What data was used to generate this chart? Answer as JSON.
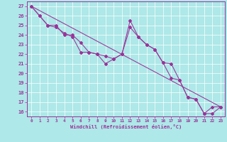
{
  "xlabel": "Windchill (Refroidissement éolien,°C)",
  "background_color": "#aee8e8",
  "line_color": "#993399",
  "xlim": [
    -0.5,
    23.5
  ],
  "ylim": [
    15.5,
    27.5
  ],
  "xticks": [
    0,
    1,
    2,
    3,
    4,
    5,
    6,
    7,
    8,
    9,
    10,
    11,
    12,
    13,
    14,
    15,
    16,
    17,
    18,
    19,
    20,
    21,
    22,
    23
  ],
  "yticks": [
    16,
    17,
    18,
    19,
    20,
    21,
    22,
    23,
    24,
    25,
    26,
    27
  ],
  "line1_x": [
    0,
    1,
    2,
    3,
    4,
    5,
    6,
    7,
    8,
    9,
    10,
    11,
    12,
    13,
    14,
    15,
    16,
    17,
    18,
    19,
    20,
    21,
    22,
    23
  ],
  "line1_y": [
    27,
    26,
    25,
    24.8,
    24.2,
    23.8,
    22.2,
    22.2,
    22.0,
    21.0,
    21.5,
    22.0,
    25.5,
    23.8,
    23.0,
    22.5,
    21.1,
    19.5,
    19.3,
    17.5,
    17.3,
    15.8,
    15.8,
    16.5
  ],
  "line2_x": [
    0,
    1,
    2,
    3,
    4,
    5,
    6,
    7,
    8,
    9,
    10,
    11,
    12,
    13,
    14,
    15,
    16,
    17,
    18,
    19,
    20,
    21,
    22,
    23
  ],
  "line2_y": [
    27,
    26,
    25,
    25.0,
    24.0,
    24.0,
    23.2,
    22.2,
    22.0,
    21.8,
    21.5,
    22.0,
    24.8,
    23.8,
    23.0,
    22.5,
    21.1,
    21.0,
    19.3,
    17.5,
    17.3,
    15.8,
    16.5,
    16.5
  ],
  "trend_x": [
    0,
    23
  ],
  "trend_y": [
    27.0,
    16.5
  ]
}
